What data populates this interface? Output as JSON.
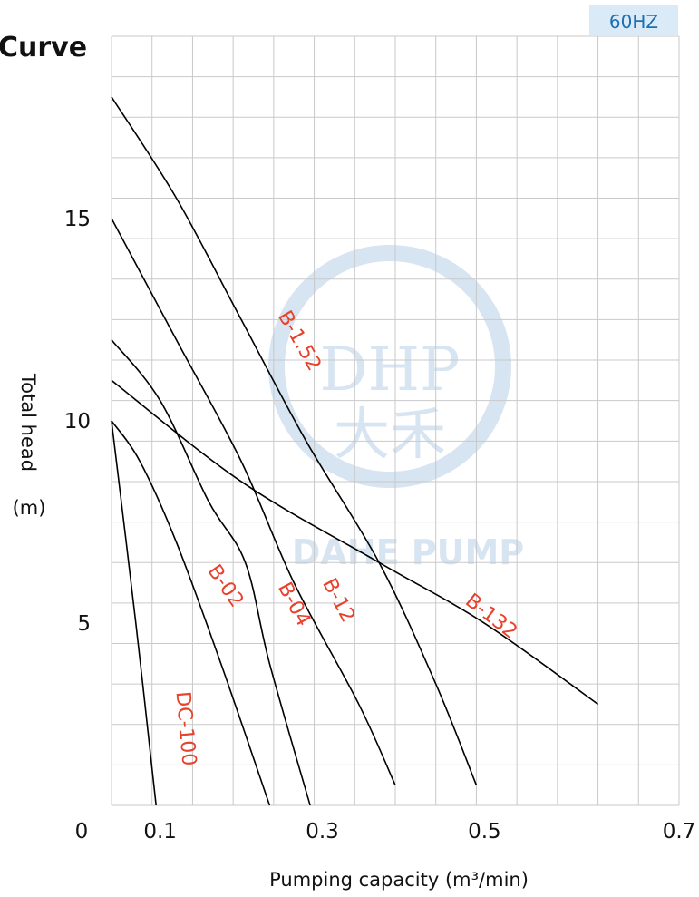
{
  "chart_data": {
    "type": "line",
    "title": "Curve",
    "badge": "60HZ",
    "xlabel": "Pumping capacity (m³/min)",
    "ylabel": "Total head",
    "ylabel_unit": "(m)",
    "xlim": [
      0.04,
      0.74
    ],
    "ylim": [
      0.5,
      19.5
    ],
    "x_ticks": [
      {
        "value": 0.04,
        "label": "0"
      },
      {
        "value": 0.1,
        "label": "0.1"
      },
      {
        "value": 0.3,
        "label": "0.3"
      },
      {
        "value": 0.5,
        "label": "0.5"
      },
      {
        "value": 0.74,
        "label": "0.7"
      }
    ],
    "y_ticks": [
      {
        "value": 5,
        "label": "5"
      },
      {
        "value": 10,
        "label": "10"
      },
      {
        "value": 15,
        "label": "15"
      }
    ],
    "grid": true,
    "watermark": {
      "line1": "DHP",
      "line2": "大禾",
      "line3": "DAHE PUMP"
    },
    "colors": {
      "label": "#e8412c",
      "curve": "#000000",
      "grid": "#c9c9c9",
      "badge_bg": "#dbeaf7",
      "badge_text": "#1f6fb2",
      "watermark": "#b7cfe6"
    },
    "series": [
      {
        "name": "DC-100",
        "points": [
          [
            0.04,
            10.0
          ],
          [
            0.07,
            5.0
          ],
          [
            0.095,
            0.5
          ]
        ]
      },
      {
        "name": "B-02",
        "points": [
          [
            0.04,
            10.0
          ],
          [
            0.075,
            9.0
          ],
          [
            0.12,
            7.0
          ],
          [
            0.175,
            4.0
          ],
          [
            0.235,
            0.5
          ]
        ]
      },
      {
        "name": "B-04",
        "points": [
          [
            0.04,
            12.0
          ],
          [
            0.1,
            10.5
          ],
          [
            0.16,
            8.0
          ],
          [
            0.205,
            6.5
          ],
          [
            0.235,
            4.0
          ],
          [
            0.285,
            0.5
          ]
        ]
      },
      {
        "name": "B-12",
        "points": [
          [
            0.04,
            15.0
          ],
          [
            0.12,
            12.0
          ],
          [
            0.2,
            9.0
          ],
          [
            0.265,
            6.0
          ],
          [
            0.345,
            3.0
          ],
          [
            0.39,
            1.0
          ]
        ]
      },
      {
        "name": "B-1.52",
        "points": [
          [
            0.04,
            18.0
          ],
          [
            0.12,
            15.5
          ],
          [
            0.2,
            12.5
          ],
          [
            0.28,
            9.5
          ],
          [
            0.37,
            6.5
          ],
          [
            0.44,
            3.5
          ],
          [
            0.49,
            1.0
          ]
        ]
      },
      {
        "name": "B-132",
        "points": [
          [
            0.04,
            11.0
          ],
          [
            0.2,
            8.5
          ],
          [
            0.37,
            6.5
          ],
          [
            0.5,
            5.0
          ],
          [
            0.64,
            3.0
          ]
        ]
      }
    ],
    "series_labels": [
      {
        "name": "B-1.52",
        "x": 0.245,
        "y": 12.6,
        "angle": 60
      },
      {
        "name": "B-132",
        "x": 0.475,
        "y": 5.5,
        "angle": 38
      },
      {
        "name": "B-12",
        "x": 0.3,
        "y": 6.0,
        "angle": 62
      },
      {
        "name": "B-04",
        "x": 0.245,
        "y": 5.9,
        "angle": 62
      },
      {
        "name": "B-02",
        "x": 0.158,
        "y": 6.3,
        "angle": 55
      },
      {
        "name": "DC-100",
        "x": 0.12,
        "y": 3.3,
        "angle": 85
      }
    ]
  }
}
